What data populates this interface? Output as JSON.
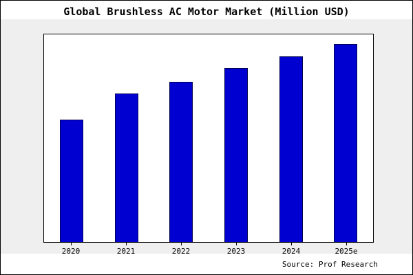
{
  "chart_data": {
    "type": "bar",
    "title": "Global Brushless AC Motor Market (Million USD)",
    "categories": [
      "2020",
      "2021",
      "2022",
      "2023",
      "2024",
      "2025e"
    ],
    "values": [
      62,
      75,
      81,
      88,
      94,
      100
    ],
    "ylim": [
      0,
      105
    ],
    "xlabel": "",
    "ylabel": "",
    "grid": false,
    "legend": false,
    "source": "Source: Prof Research",
    "colors": {
      "bar_fill": "#0000d0",
      "bar_border": "#000050",
      "plot_bg": "#ffffff",
      "band_bg": "#efefef",
      "page_bg": "#ffffff",
      "frame_border": "#000000"
    }
  }
}
